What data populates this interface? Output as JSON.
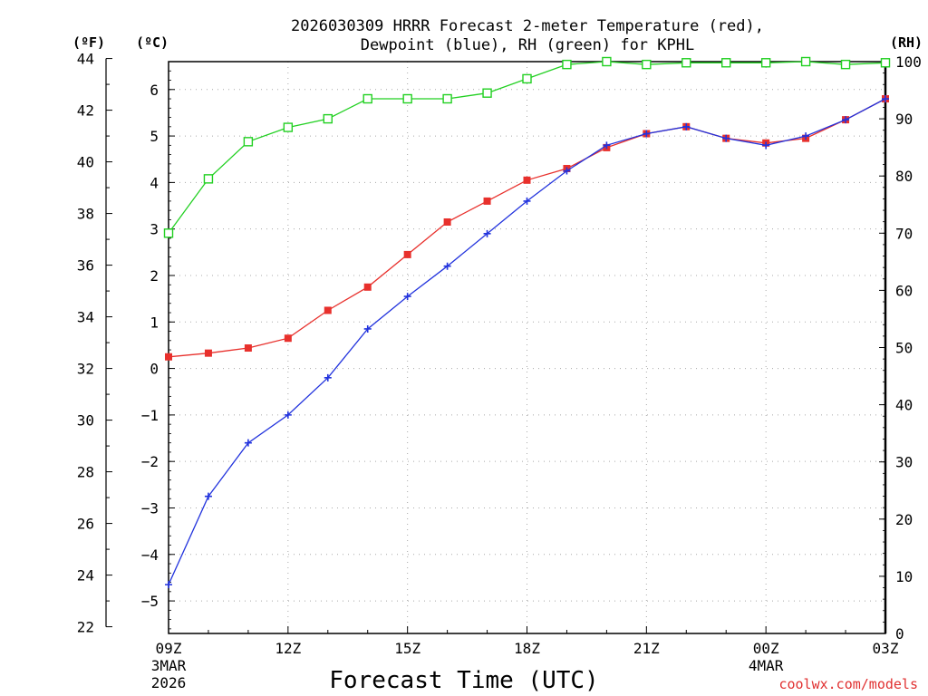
{
  "chart_data": {
    "type": "line",
    "title_lines": [
      "2026030309 HRRR Forecast 2-meter Temperature (red),",
      "Dewpoint (blue), RH (green) for KPHL"
    ],
    "xlabel": "Forecast Time (UTC)",
    "credit": "coolwx.com/models",
    "units": {
      "left_outer": "(ºF)",
      "left_inner": "(ºC)",
      "right": "(RH)"
    },
    "x_hours": [
      0,
      1,
      2,
      3,
      4,
      5,
      6,
      7,
      8,
      9,
      10,
      11,
      12,
      13,
      14,
      15,
      16,
      17,
      18
    ],
    "xlim": [
      0,
      18
    ],
    "x_ticks": [
      {
        "hour": 0,
        "label": "09Z",
        "date": "3MAR",
        "year": "2026"
      },
      {
        "hour": 3,
        "label": "12Z"
      },
      {
        "hour": 6,
        "label": "15Z"
      },
      {
        "hour": 9,
        "label": "18Z"
      },
      {
        "hour": 12,
        "label": "21Z"
      },
      {
        "hour": 15,
        "label": "00Z",
        "date": "4MAR"
      },
      {
        "hour": 18,
        "label": "03Z"
      }
    ],
    "y_celsius": {
      "range": [
        -5.7,
        6.6
      ],
      "ticks": [
        -5,
        -4,
        -3,
        -2,
        -1,
        0,
        1,
        2,
        3,
        4,
        5,
        6
      ]
    },
    "y_fahrenheit": {
      "ticks": [
        22,
        24,
        26,
        28,
        30,
        32,
        34,
        36,
        38,
        40,
        42,
        44
      ]
    },
    "y_rh": {
      "range": [
        0,
        100
      ],
      "ticks": [
        0,
        10,
        20,
        30,
        40,
        50,
        60,
        70,
        80,
        90,
        100
      ]
    },
    "grid": true,
    "series": [
      {
        "name": "Temperature",
        "axis": "celsius",
        "color": "#e8302c",
        "marker": "filled-square",
        "values": [
          0.25,
          0.33,
          0.44,
          0.65,
          1.25,
          1.75,
          2.45,
          3.15,
          3.6,
          4.05,
          4.3,
          4.75,
          5.05,
          5.2,
          4.95,
          4.85,
          4.95,
          5.35,
          5.8
        ]
      },
      {
        "name": "Dewpoint",
        "axis": "celsius",
        "color": "#2233dd",
        "marker": "plus",
        "values": [
          -4.65,
          -2.75,
          -1.6,
          -1.0,
          -0.2,
          0.85,
          1.55,
          2.2,
          2.9,
          3.6,
          4.25,
          4.8,
          5.05,
          5.2,
          4.95,
          4.8,
          5.0,
          5.35,
          5.8
        ]
      },
      {
        "name": "RH",
        "axis": "rh",
        "color": "#22d022",
        "marker": "open-square",
        "values": [
          70,
          79.5,
          86,
          88.5,
          90,
          93.5,
          93.5,
          93.5,
          94.5,
          97,
          99.5,
          100,
          99.5,
          99.8,
          99.8,
          99.8,
          100,
          99.5,
          99.8
        ]
      }
    ]
  }
}
